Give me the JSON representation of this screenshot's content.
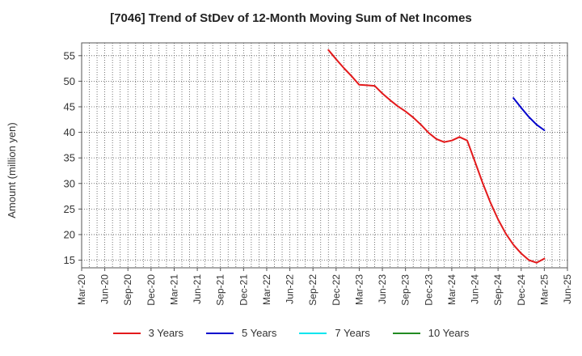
{
  "chart_data": {
    "type": "line",
    "title": "[7046]  Trend of StDev of 12-Month Moving Sum of Net Incomes",
    "ylabel": "Amount (million yen)",
    "xlabel": "",
    "ylim": [
      13.5,
      57.5
    ],
    "yticks": [
      15,
      20,
      25,
      30,
      35,
      40,
      45,
      50,
      55
    ],
    "xticks": [
      "Mar-20",
      "Jun-20",
      "Sep-20",
      "Dec-20",
      "Mar-21",
      "Jun-21",
      "Sep-21",
      "Dec-21",
      "Mar-22",
      "Jun-22",
      "Sep-22",
      "Dec-22",
      "Mar-23",
      "Jun-23",
      "Sep-23",
      "Dec-23",
      "Mar-24",
      "Jun-24",
      "Sep-24",
      "Dec-24",
      "Mar-25",
      "Jun-25"
    ],
    "grid": true,
    "legend_position": "bottom",
    "series": [
      {
        "name": "3 Years",
        "color": "#e31a1c",
        "x": [
          "Nov-22",
          "Dec-22",
          "Jan-23",
          "Feb-23",
          "Mar-23",
          "Apr-23",
          "May-23",
          "Jun-23",
          "Jul-23",
          "Aug-23",
          "Sep-23",
          "Oct-23",
          "Nov-23",
          "Dec-23",
          "Jan-24",
          "Feb-24",
          "Mar-24",
          "Apr-24",
          "May-24",
          "Jun-24",
          "Jul-24",
          "Aug-24",
          "Sep-24",
          "Oct-24",
          "Nov-24",
          "Dec-24",
          "Jan-25",
          "Feb-25",
          "Mar-25"
        ],
        "y": [
          56.1,
          54.3,
          52.6,
          51.0,
          49.3,
          49.2,
          49.1,
          47.6,
          46.3,
          45.1,
          44.1,
          42.9,
          41.5,
          39.9,
          38.7,
          38.1,
          38.4,
          39.1,
          38.4,
          34.3,
          30.1,
          26.3,
          23.0,
          20.2,
          18.0,
          16.3,
          15.0,
          14.5,
          15.3
        ]
      },
      {
        "name": "5 Years",
        "color": "#0000cc",
        "x": [
          "Nov-24",
          "Dec-24",
          "Jan-25",
          "Feb-25",
          "Mar-25"
        ],
        "y": [
          46.7,
          44.8,
          43.0,
          41.5,
          40.4
        ]
      },
      {
        "name": "7 Years",
        "color": "#00e5ee",
        "x": [],
        "y": []
      },
      {
        "name": "10 Years",
        "color": "#228b22",
        "x": [],
        "y": []
      }
    ]
  }
}
